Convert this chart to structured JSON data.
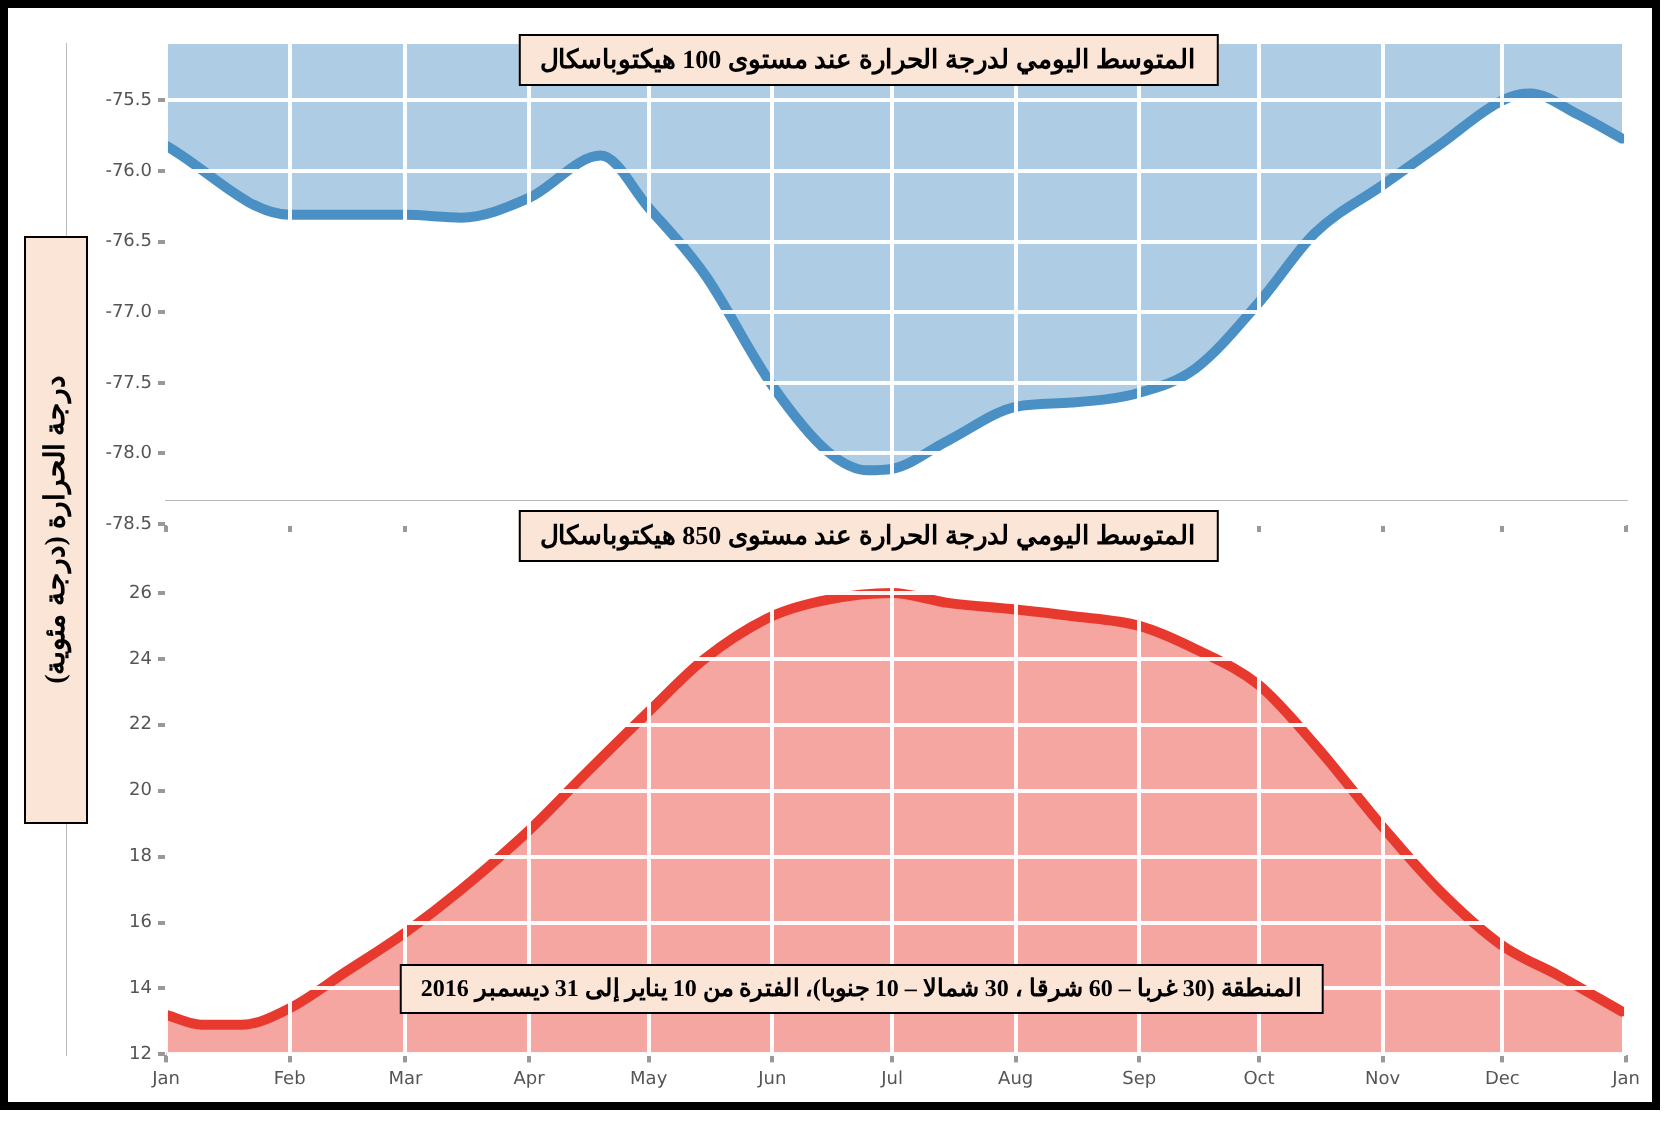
{
  "chart_data": [
    {
      "type": "area",
      "title": "المتوسط اليومي لدرجة الحرارة عند مستوى 100 هيكتوباسكال",
      "ylabel": "درجة الحرارة (درجة مئوية)",
      "xlim": [
        "2016-01-01",
        "2017-01-01"
      ],
      "xticks": [
        {
          "value": "2016-01-01",
          "label": null
        },
        {
          "value": "2016-02-01",
          "label": null
        },
        {
          "value": "2016-03-01",
          "label": null
        },
        {
          "value": "2016-04-01",
          "label": null
        },
        {
          "value": "2016-05-01",
          "label": null
        },
        {
          "value": "2016-06-01",
          "label": null
        },
        {
          "value": "2016-07-01",
          "label": null
        },
        {
          "value": "2016-08-01",
          "label": null
        },
        {
          "value": "2016-09-01",
          "label": null
        },
        {
          "value": "2016-10-01",
          "label": null
        },
        {
          "value": "2016-11-01",
          "label": null
        },
        {
          "value": "2016-12-01",
          "label": null
        },
        {
          "value": "2017-01-01",
          "label": null
        }
      ],
      "ylim": [
        -78.5,
        -75.1
      ],
      "yticks": [
        {
          "value": -78.5,
          "label": "-78.5"
        },
        {
          "value": -78,
          "label": "-78.0"
        },
        {
          "value": -77.5,
          "label": "-77.5"
        },
        {
          "value": -77,
          "label": "-77.0"
        },
        {
          "value": -76.5,
          "label": "-76.5"
        },
        {
          "value": -76,
          "label": "-76.0"
        },
        {
          "value": -75.5,
          "label": "-75.5"
        }
      ],
      "grid": true,
      "tick_labels": "y",
      "legend": false,
      "series": [
        {
          "color": "#4a90c4",
          "x": [
            "2016-01-01",
            "2016-02-01",
            "2016-03-01",
            "2016-03-15",
            "2016-04-01",
            "2016-04-19",
            "2016-05-01",
            "2016-05-15",
            "2016-06-01",
            "2016-06-15",
            "2016-06-25",
            "2016-07-01",
            "2016-07-15",
            "2016-08-01",
            "2016-08-15",
            "2016-09-01",
            "2016-09-15",
            "2016-10-01",
            "2016-10-15",
            "2016-11-01",
            "2016-11-15",
            "2016-12-01",
            "2016-12-08",
            "2016-12-20",
            "2016-12-31"
          ],
          "values": [
            -75.82,
            -76.31,
            -76.31,
            -76.33,
            -76.19,
            -75.89,
            -76.26,
            -76.73,
            -77.52,
            -77.99,
            -78.12,
            -78.11,
            -77.91,
            -77.67,
            -77.64,
            -77.57,
            -77.4,
            -76.93,
            -76.44,
            -76.1,
            -75.82,
            -75.5,
            -75.45,
            -75.6,
            -75.77
          ]
        }
      ]
    },
    {
      "type": "area",
      "title": "المتوسط اليومي لدرجة الحرارة عند مستوى 850 هيكتوباسكال",
      "annotations": [
        "المنطقة (30 غربا – 60 شرقا ، 30 شمالا – 10 جنوبا)، الفترة من 10 يناير إلى 31 ديسمبر 2016"
      ],
      "xlim": [
        "2016-01-01",
        "2017-01-01"
      ],
      "xticks": [
        {
          "value": "2016-01-01",
          "label": "Jan"
        },
        {
          "value": "2016-02-01",
          "label": "Feb"
        },
        {
          "value": "2016-03-01",
          "label": "Mar"
        },
        {
          "value": "2016-04-01",
          "label": "Apr"
        },
        {
          "value": "2016-05-01",
          "label": "May"
        },
        {
          "value": "2016-06-01",
          "label": "Jun"
        },
        {
          "value": "2016-07-01",
          "label": "Jul"
        },
        {
          "value": "2016-08-01",
          "label": "Aug"
        },
        {
          "value": "2016-09-01",
          "label": "Sep"
        },
        {
          "value": "2016-10-01",
          "label": "Oct"
        },
        {
          "value": "2016-11-01",
          "label": "Nov"
        },
        {
          "value": "2016-12-01",
          "label": "Dec"
        },
        {
          "value": "2017-01-01",
          "label": "Jan"
        }
      ],
      "ylim": [
        12,
        27
      ],
      "yticks": [
        12,
        14,
        16,
        18,
        20,
        22,
        24,
        26
      ],
      "grid": true,
      "legend": false,
      "series": [
        {
          "color": "#e8392f",
          "x": [
            "2016-01-01",
            "2016-01-10",
            "2016-01-20",
            "2016-02-01",
            "2016-02-15",
            "2016-03-01",
            "2016-03-15",
            "2016-04-01",
            "2016-04-15",
            "2016-05-01",
            "2016-05-15",
            "2016-06-01",
            "2016-06-15",
            "2016-07-01",
            "2016-07-15",
            "2016-08-01",
            "2016-08-15",
            "2016-09-01",
            "2016-09-15",
            "2016-10-01",
            "2016-10-15",
            "2016-11-01",
            "2016-11-15",
            "2016-12-01",
            "2016-12-15",
            "2016-12-31"
          ],
          "values": [
            13.2,
            12.9,
            12.9,
            13.4,
            14.5,
            15.7,
            17.0,
            18.8,
            20.5,
            22.4,
            24.0,
            25.3,
            25.8,
            26.0,
            25.7,
            25.5,
            25.3,
            25.0,
            24.3,
            23.2,
            21.4,
            18.9,
            17.0,
            15.3,
            14.4,
            13.3
          ]
        }
      ]
    }
  ]
}
